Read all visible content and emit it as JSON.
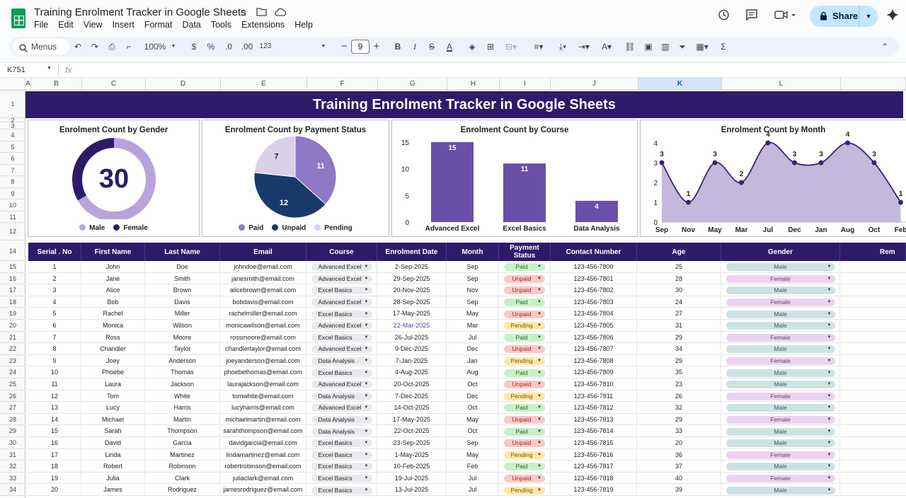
{
  "doc": {
    "title": "Training Enrolment Tracker in Google Sheets",
    "menus": [
      "File",
      "Edit",
      "View",
      "Insert",
      "Format",
      "Data",
      "Tools",
      "Extensions",
      "Help"
    ],
    "share_label": "Share"
  },
  "toolbar": {
    "search_label": "Menus",
    "zoom": "100%",
    "currency": "$",
    "percent": "%",
    "dec_less": ".0",
    "dec_more": ".00",
    "format123": "123",
    "font_size": "9"
  },
  "formula_bar": {
    "cell_ref": "K751",
    "fx": "fx"
  },
  "columns": [
    "A",
    "B",
    "C",
    "D",
    "E",
    "F",
    "G",
    "H",
    "I",
    "J",
    "K",
    "L"
  ],
  "selected_column": "K",
  "rows": [
    "1",
    "2",
    "3",
    "4",
    "5",
    "6",
    "7",
    "8",
    "9",
    "10",
    "11",
    "12",
    "14",
    "15",
    "16",
    "17",
    "18",
    "19",
    "20",
    "21",
    "22",
    "23",
    "24",
    "25",
    "26",
    "27",
    "28",
    "29",
    "30",
    "31",
    "32",
    "33",
    "34"
  ],
  "banner": "Training Enrolment Tracker in Google Sheets",
  "charts": {
    "gender": {
      "title": "Enrolment Count by Gender",
      "center_value": "30",
      "legend": [
        "Male",
        "Female"
      ],
      "colors": [
        "#b8a4dc",
        "#2d1b69"
      ]
    },
    "payment": {
      "title": "Enrolment Count by Payment Status",
      "legend": [
        "Paid",
        "Unpaid",
        "Pending"
      ],
      "colors": [
        "#8e79c6",
        "#173a6b",
        "#d9d0ea"
      ]
    },
    "course": {
      "title": "Enrolment Count by Course",
      "color": "#6a4fa8"
    },
    "month": {
      "title": "Enrolment Count by Month",
      "line_color": "#3b2275",
      "fill_color": "#c4b8dc"
    }
  },
  "chart_data": [
    {
      "type": "pie",
      "title": "Enrolment Count by Gender",
      "labels": [
        "Male",
        "Female"
      ],
      "values": [
        20,
        10
      ],
      "center_label": "30"
    },
    {
      "type": "pie",
      "title": "Enrolment Count by Payment Status",
      "labels": [
        "Paid",
        "Unpaid",
        "Pending"
      ],
      "values": [
        11,
        12,
        7
      ]
    },
    {
      "type": "bar",
      "title": "Enrolment Count by Course",
      "categories": [
        "Advanced Excel",
        "Excel Basics",
        "Data Analysis"
      ],
      "values": [
        15,
        11,
        4
      ],
      "ylim": [
        0,
        15
      ],
      "yticks": [
        0,
        5,
        10,
        15
      ]
    },
    {
      "type": "area",
      "title": "Enrolment Count by Month",
      "categories": [
        "Sep",
        "Nov",
        "May",
        "Mar",
        "Jul",
        "Dec",
        "Jan",
        "Aug",
        "Oct",
        "Feb"
      ],
      "values": [
        3,
        1,
        3,
        2,
        4,
        3,
        3,
        4,
        3,
        1
      ],
      "ylim": [
        0,
        4
      ],
      "yticks": [
        0,
        1,
        2,
        3,
        4
      ],
      "data_labels": [
        "3",
        "1",
        "3",
        "2",
        "4",
        "3",
        "3",
        "4",
        "3",
        "1"
      ]
    }
  ],
  "table": {
    "headers": [
      "Serial . No",
      "First Name",
      "Last Name",
      "Email",
      "Course",
      "Enrolment Date",
      "Month",
      "Payment Status",
      "Contact Number",
      "Age",
      "Gender",
      "Rem"
    ],
    "status_colors": {
      "Paid": "#c8f0c8",
      "Unpaid": "#f8c9c9",
      "Pending": "#fde9a5"
    },
    "gender_colors": {
      "Male": "#cde3e3",
      "Female": "#ead3f0"
    },
    "rows": [
      [
        "1",
        "John",
        "Doe",
        "johndoe@email.com",
        "Advanced Excel",
        "2-Sep-2025",
        "Sep",
        "Paid",
        "123-456-7800",
        "25",
        "Male"
      ],
      [
        "2",
        "Jane",
        "Smith",
        "janesmith@email.com",
        "Advanced Excel",
        "29-Sep-2025",
        "Sep",
        "Unpaid",
        "123-456-7801",
        "28",
        "Female"
      ],
      [
        "3",
        "Alice",
        "Brown",
        "alicebrown@email.com",
        "Excel Basics",
        "20-Nov-2025",
        "Nov",
        "Unpaid",
        "123-456-7802",
        "30",
        "Male"
      ],
      [
        "4",
        "Bob",
        "Davis",
        "bobdavis@email.com",
        "Advanced Excel",
        "28-Sep-2025",
        "Sep",
        "Paid",
        "123-456-7803",
        "24",
        "Female"
      ],
      [
        "5",
        "Rachel",
        "Miller",
        "rachelmiller@email.com",
        "Excel Basics",
        "17-May-2025",
        "May",
        "Unpaid",
        "123-456-7804",
        "27",
        "Male"
      ],
      [
        "6",
        "Monica",
        "Wilson",
        "monicawilson@email.com",
        "Advanced Excel",
        "22-Mar-2025",
        "Mar",
        "Pending",
        "123-456-7805",
        "31",
        "Male"
      ],
      [
        "7",
        "Ross",
        "Moore",
        "rossmoore@email.com",
        "Excel Basics",
        "26-Jul-2025",
        "Jul",
        "Paid",
        "123-456-7806",
        "29",
        "Female"
      ],
      [
        "8",
        "Chandler",
        "Taylor",
        "chandlertaylor@email.com",
        "Advanced Excel",
        "9-Dec-2025",
        "Dec",
        "Unpaid",
        "123-456-7807",
        "34",
        "Male"
      ],
      [
        "9",
        "Joey",
        "Anderson",
        "joeyanderson@email.com",
        "Data Analysis",
        "7-Jan-2025",
        "Jan",
        "Pending",
        "123-456-7808",
        "29",
        "Female"
      ],
      [
        "10",
        "Phoebe",
        "Thomas",
        "phoebethomas@email.com",
        "Excel Basics",
        "4-Aug-2025",
        "Aug",
        "Paid",
        "123-456-7809",
        "35",
        "Male"
      ],
      [
        "11",
        "Laura",
        "Jackson",
        "laurajackson@email.com",
        "Advanced Excel",
        "20-Oct-2025",
        "Oct",
        "Unpaid",
        "123-456-7810",
        "23",
        "Male"
      ],
      [
        "12",
        "Tom",
        "White",
        "tomwhite@email.com",
        "Data Analysis",
        "7-Dec-2025",
        "Dec",
        "Pending",
        "123-456-7811",
        "26",
        "Female"
      ],
      [
        "13",
        "Lucy",
        "Harris",
        "lucyharris@email.com",
        "Advanced Excel",
        "14-Oct-2025",
        "Oct",
        "Paid",
        "123-456-7812",
        "32",
        "Male"
      ],
      [
        "14",
        "Michael",
        "Martin",
        "michaelmartin@email.com",
        "Data Analysis",
        "17-May-2025",
        "May",
        "Unpaid",
        "123-456-7813",
        "29",
        "Female"
      ],
      [
        "15",
        "Sarah",
        "Thompson",
        "sarahthompson@email.com",
        "Data Analysis",
        "22-Oct-2025",
        "Oct",
        "Paid",
        "123-456-7814",
        "33",
        "Male"
      ],
      [
        "16",
        "David",
        "Garcia",
        "davidgarcia@email.com",
        "Excel Basics",
        "23-Sep-2025",
        "Sep",
        "Unpaid",
        "123-456-7815",
        "20",
        "Male"
      ],
      [
        "17",
        "Linda",
        "Martinez",
        "lindamartinez@email.com",
        "Excel Basics",
        "1-May-2025",
        "May",
        "Pending",
        "123-456-7816",
        "36",
        "Female"
      ],
      [
        "18",
        "Robert",
        "Robinson",
        "robertrobinson@email.com",
        "Excel Basics",
        "10-Feb-2025",
        "Feb",
        "Paid",
        "123-456-7817",
        "37",
        "Male"
      ],
      [
        "19",
        "Julia",
        "Clark",
        "juliaclark@email.com",
        "Excel Basics",
        "19-Jul-2025",
        "Jul",
        "Unpaid",
        "123-456-7818",
        "40",
        "Female"
      ],
      [
        "20",
        "James",
        "Rodriguez",
        "jamesrodriguez@email.com",
        "Excel Basics",
        "13-Jul-2025",
        "Jul",
        "Pending",
        "123-456-7819",
        "39",
        "Male"
      ]
    ]
  }
}
